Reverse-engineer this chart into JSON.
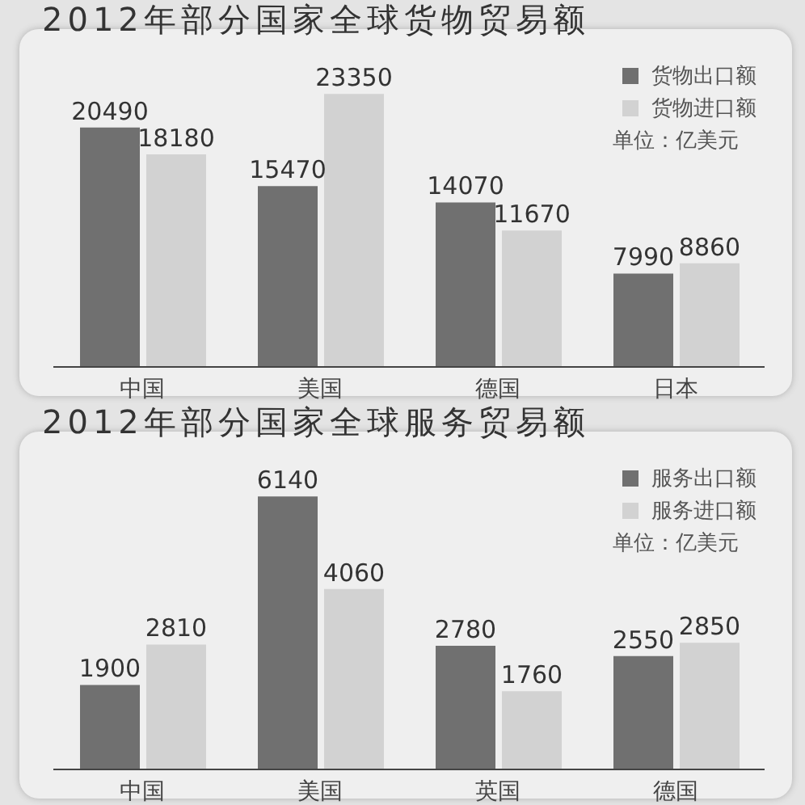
{
  "chart_data": [
    {
      "type": "bar",
      "title": "2012年部分国家全球货物贸易额",
      "categories": [
        "中国",
        "美国",
        "德国",
        "日本"
      ],
      "series": [
        {
          "name": "货物出口额",
          "color": "#707070",
          "values": [
            20490,
            15470,
            14070,
            7990
          ]
        },
        {
          "name": "货物进口额",
          "color": "#d2d2d2",
          "values": [
            18180,
            23350,
            11670,
            8860
          ]
        }
      ],
      "data_labels": true,
      "legend": "top right",
      "annotations": [
        "单位：亿美元"
      ]
    },
    {
      "type": "bar",
      "title": "2012年部分国家全球服务贸易额",
      "categories": [
        "中国",
        "美国",
        "英国",
        "德国"
      ],
      "series": [
        {
          "name": "服务出口额",
          "color": "#707070",
          "values": [
            1900,
            6140,
            2780,
            2550
          ]
        },
        {
          "name": "服务进口额",
          "color": "#d2d2d2",
          "values": [
            2810,
            4060,
            1760,
            2850
          ]
        }
      ],
      "data_labels": true,
      "legend": "top right",
      "annotations": [
        "单位：亿美元"
      ]
    }
  ]
}
